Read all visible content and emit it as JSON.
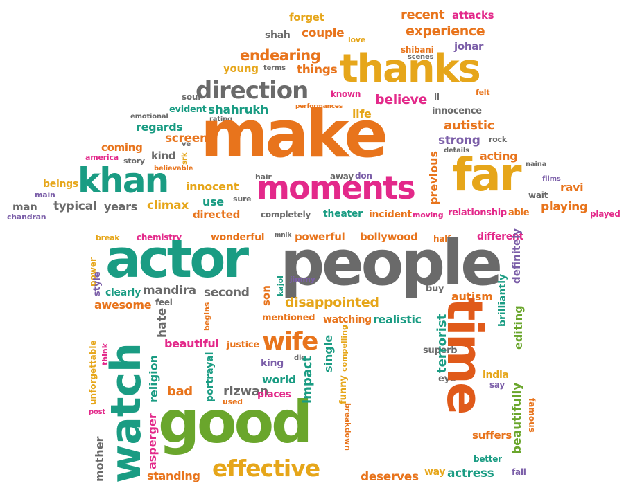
{
  "words": {
    "make": "make",
    "people": "people",
    "actor": "actor",
    "good": "good",
    "watch": "watch",
    "time": "time",
    "khan": "khan",
    "far": "far",
    "thanks": "thanks",
    "moments": "moments",
    "direction": "direction",
    "effective": "effective",
    "wife": "wife",
    "disappointed": "disappointed",
    "experience": "experience",
    "recent": "recent",
    "attacks": "attacks",
    "forget": "forget",
    "couple": "couple",
    "shah": "shah",
    "love": "love",
    "johar": "johar",
    "shibani": "shibani",
    "scenes": "scenes",
    "endearing": "endearing",
    "young": "young",
    "terms": "terms",
    "things": "things",
    "soul": "soul",
    "known": "known",
    "ll": "ll",
    "felt": "felt",
    "believe": "believe",
    "evident": "evident",
    "shahrukh": "shahrukh",
    "performances": "performances",
    "emotional": "emotional",
    "rating": "rating",
    "life": "life",
    "innocence": "innocence",
    "regards": "regards",
    "autistic": "autistic",
    "screen": "screen",
    "ve": "ve",
    "rock": "rock",
    "strong": "strong",
    "coming": "coming",
    "kind": "kind",
    "srk": "srk",
    "details": "details",
    "america": "america",
    "story": "story",
    "acting": "acting",
    "naina": "naina",
    "believable": "believable",
    "hair": "hair",
    "away": "away",
    "don": "don",
    "previous": "previous",
    "films": "films",
    "beings": "beings",
    "main": "main",
    "innocent": "innocent",
    "sure": "sure",
    "wait": "wait",
    "ravi": "ravi",
    "man": "man",
    "typical": "typical",
    "years": "years",
    "climax": "climax",
    "use": "use",
    "playing": "playing",
    "chandran": "chandran",
    "directed": "directed",
    "completely": "completely",
    "theater": "theater",
    "incident": "incident",
    "moving": "moving",
    "relationship": "relationship",
    "able": "able",
    "played": "played",
    "break": "break",
    "chemistry": "chemistry",
    "wonderful": "wonderful",
    "mnik": "mnik",
    "powerful": "powerful",
    "bollywood": "bollywood",
    "half": "half",
    "different": "different",
    "power": "power",
    "definitely": "definitely",
    "style": "style",
    "mandira": "mandira",
    "second": "second",
    "son": "son",
    "jimmy": "jimmy",
    "kajol": "kajol",
    "buy": "buy",
    "clearly": "clearly",
    "awesome": "awesome",
    "feel": "feel",
    "autism": "autism",
    "brilliantly": "brilliantly",
    "hate": "hate",
    "begins": "begins",
    "mentioned": "mentioned",
    "watching": "watching",
    "realistic": "realistic",
    "editing": "editing",
    "terrorist": "terrorist",
    "unforgettable": "unforgettable",
    "beautiful": "beautiful",
    "justice": "justice",
    "single": "single",
    "compelling": "compelling",
    "think": "think",
    "king": "king",
    "die": "die",
    "impact": "impact",
    "superb": "superb",
    "funny": "funny",
    "portrayal": "portrayal",
    "world": "world",
    "eye": "eye",
    "india": "india",
    "say": "say",
    "religion": "religion",
    "bad": "bad",
    "rizwan": "rizwan",
    "places": "places",
    "used": "used",
    "beautifully": "beautifully",
    "post": "post",
    "asperger": "asperger",
    "breakdown": "breakdown",
    "famous": "famous",
    "suffers": "suffers",
    "mother": "mother",
    "better": "better",
    "standing": "standing",
    "deserves": "deserves",
    "way": "way",
    "actress": "actress",
    "fall": "fall"
  },
  "colors": {
    "orange": "#e8741c",
    "gray": "#6a6a6a",
    "teal": "#1a9c83",
    "pink": "#e3298a",
    "yellow": "#e6a61a",
    "green": "#6aa62c",
    "purple": "#7b5ea8",
    "red": "#e05a1a"
  }
}
